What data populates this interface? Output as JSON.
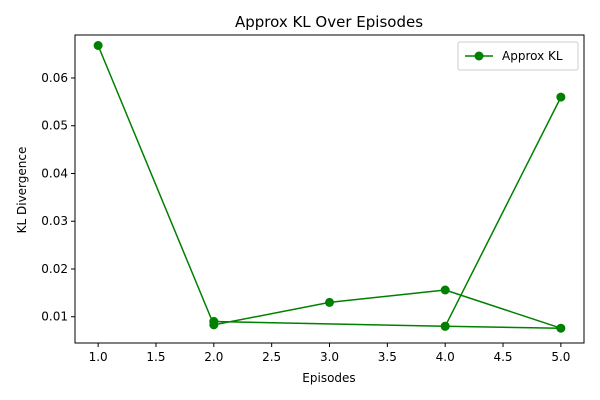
{
  "chart_data": {
    "type": "line",
    "title": "Approx KL Over Episodes",
    "xlabel": "Episodes",
    "ylabel": "KL Divergence",
    "xlim": [
      0.8,
      5.2
    ],
    "ylim": [
      0.0045,
      0.069
    ],
    "xticks": [
      "1.0",
      "1.5",
      "2.0",
      "2.5",
      "3.0",
      "3.5",
      "4.0",
      "4.5",
      "5.0"
    ],
    "yticks": [
      "0.01",
      "0.02",
      "0.03",
      "0.04",
      "0.05",
      "0.06"
    ],
    "grid": false,
    "legend_position": "top-right",
    "series": [
      {
        "name": "Approx KL",
        "color": "#008000",
        "marker": "circle",
        "x": [
          1.0,
          2.0,
          3.0,
          4.0,
          5.0,
          4.0,
          2.0,
          2.0,
          4.0,
          5.0
        ],
        "y": [
          0.0668,
          0.0083,
          0.013,
          0.0156,
          0.0076,
          0.008,
          0.009,
          0.009,
          0.008,
          0.056
        ]
      }
    ]
  }
}
